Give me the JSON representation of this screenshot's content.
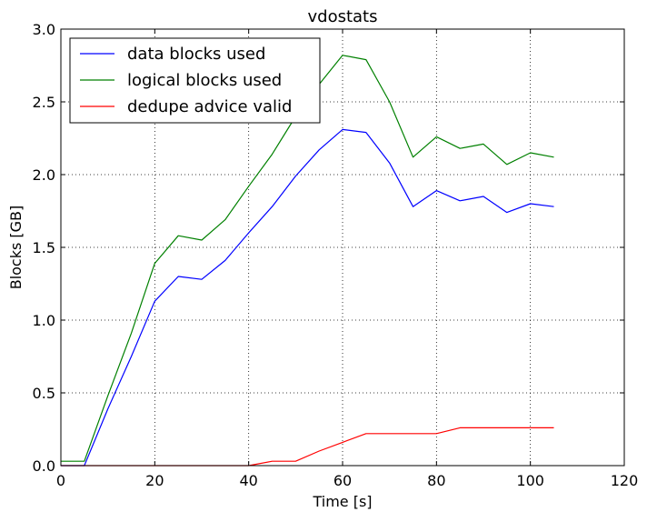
{
  "chart_data": {
    "type": "line",
    "title": "vdostats",
    "xlabel": "Time [s]",
    "ylabel": "Blocks [GB]",
    "xlim": [
      0,
      120
    ],
    "ylim": [
      0,
      3.0
    ],
    "xticks": [
      0,
      20,
      40,
      60,
      80,
      100,
      120
    ],
    "yticks": [
      0.0,
      0.5,
      1.0,
      1.5,
      2.0,
      2.5,
      3.0
    ],
    "xtick_labels": [
      "0",
      "20",
      "40",
      "60",
      "80",
      "100",
      "120"
    ],
    "ytick_labels": [
      "0.0",
      "0.5",
      "1.0",
      "1.5",
      "2.0",
      "2.5",
      "3.0"
    ],
    "grid": true,
    "legend_position": "upper-left",
    "x": [
      0,
      5,
      10,
      15,
      20,
      25,
      30,
      35,
      40,
      45,
      50,
      55,
      60,
      65,
      70,
      75,
      80,
      85,
      90,
      95,
      100,
      105
    ],
    "series": [
      {
        "name": "data blocks used",
        "color": "#0000ff",
        "values": [
          0.0,
          0.0,
          0.39,
          0.75,
          1.13,
          1.3,
          1.28,
          1.41,
          1.6,
          1.78,
          1.99,
          2.17,
          2.31,
          2.29,
          2.08,
          1.78,
          1.89,
          1.82,
          1.85,
          1.74,
          1.8,
          1.78
        ]
      },
      {
        "name": "logical blocks used",
        "color": "#008000",
        "values": [
          0.03,
          0.03,
          0.48,
          0.91,
          1.39,
          1.58,
          1.55,
          1.69,
          1.92,
          2.14,
          2.4,
          2.62,
          2.82,
          2.79,
          2.5,
          2.12,
          2.26,
          2.18,
          2.21,
          2.07,
          2.15,
          2.12
        ]
      },
      {
        "name": "dedupe advice valid",
        "color": "#ff0000",
        "values": [
          0.0,
          0.0,
          0.0,
          0.0,
          0.0,
          0.0,
          0.0,
          0.0,
          0.0,
          0.03,
          0.03,
          0.1,
          0.16,
          0.22,
          0.22,
          0.22,
          0.22,
          0.26,
          0.26,
          0.26,
          0.26,
          0.26
        ]
      }
    ]
  }
}
